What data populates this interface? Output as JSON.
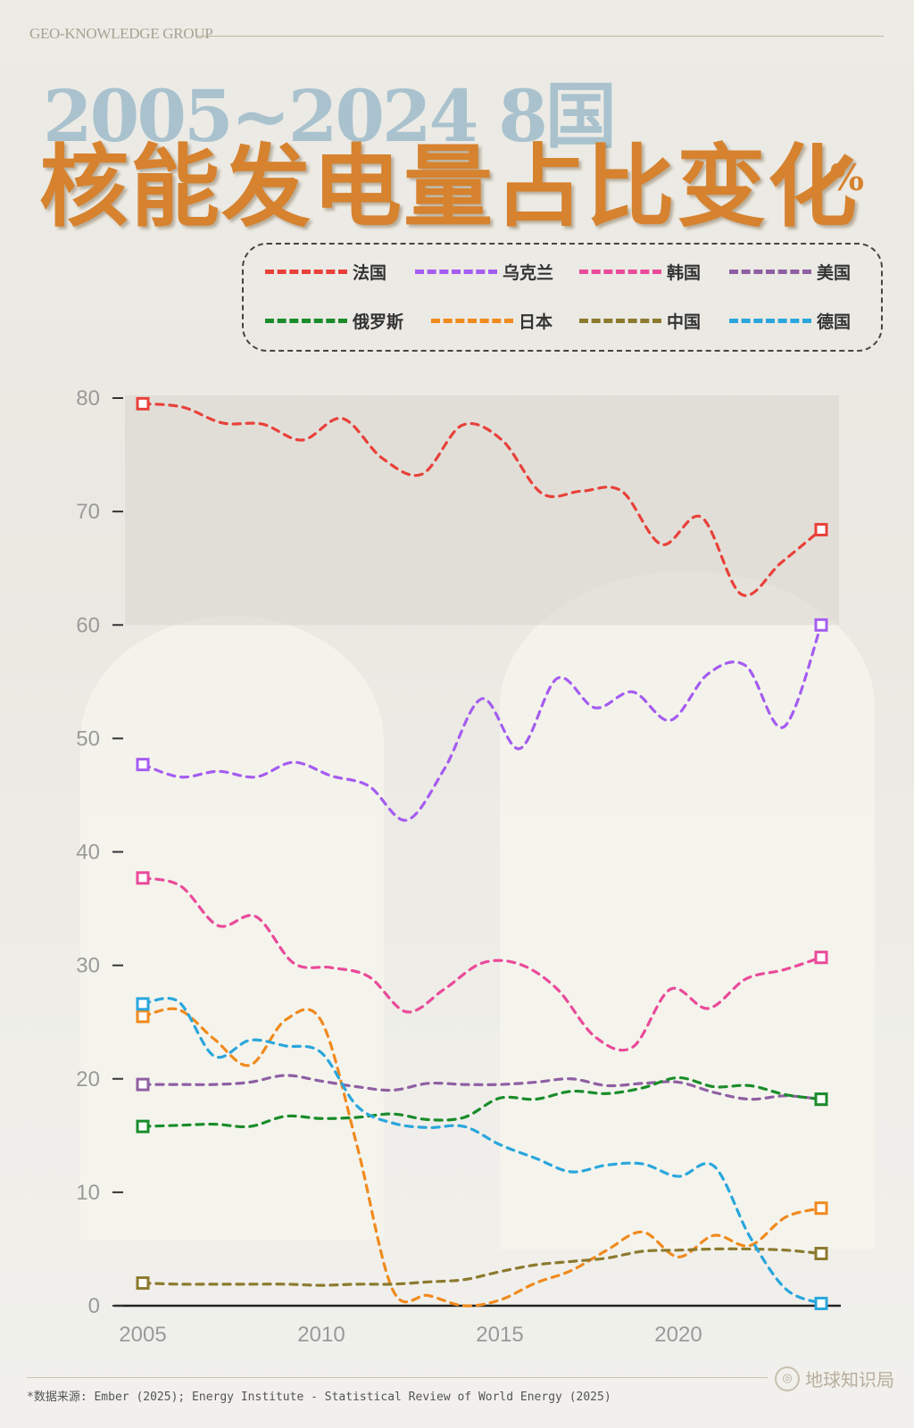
{
  "header": {
    "brand": "GEO-KNOWLEDGE GROUP",
    "subtitle": "2005~2024 8国",
    "title": "核能发电量占比变化",
    "unit": "%"
  },
  "footer": {
    "source": "*数据来源: Ember (2025); Energy Institute - Statistical Review of World Energy (2025)",
    "logo_text": "地球知识局"
  },
  "colors": {
    "france": "#e8413a",
    "ukraine": "#a55cf0",
    "korea": "#ea4a9a",
    "usa": "#8f5fa3",
    "russia": "#1a8c2a",
    "japan": "#f08a1e",
    "china": "#8c7a2e",
    "germany": "#2aa6dc"
  },
  "chart_data": {
    "type": "line",
    "title": "核能发电量占比变化",
    "xlabel": "",
    "ylabel": "",
    "xlim": [
      2005,
      2024
    ],
    "ylim": [
      0,
      80
    ],
    "x_ticks": [
      2005,
      2010,
      2015,
      2020
    ],
    "y_ticks": [
      0,
      10,
      20,
      30,
      40,
      50,
      60,
      70,
      80
    ],
    "grid": false,
    "legend_position": "top",
    "highlight_band": [
      60,
      80
    ],
    "x": [
      2005,
      2006,
      2007,
      2008,
      2009,
      2010,
      2011,
      2012,
      2013,
      2014,
      2015,
      2016,
      2017,
      2018,
      2019,
      2020,
      2021,
      2022,
      2023,
      2024
    ],
    "series": [
      {
        "name": "法国",
        "color": "#e8413a",
        "values": [
          79.5,
          79.2,
          77.8,
          77.7,
          76.3,
          78.2,
          74.7,
          73.3,
          77.6,
          76.3,
          71.6,
          71.8,
          71.8,
          67.1,
          69.5,
          62.7,
          65.5,
          68.4,
          null,
          null
        ]
      },
      {
        "name": "乌克兰",
        "color": "#a55cf0",
        "values": [
          47.7,
          46.6,
          47.1,
          46.6,
          47.9,
          46.7,
          45.8,
          42.8,
          47.3,
          53.5,
          49.1,
          55.3,
          52.7,
          54.1,
          51.6,
          55.7,
          56.4,
          51.0,
          60.0,
          null
        ]
      },
      {
        "name": "韩国",
        "color": "#ea4a9a",
        "values": [
          37.7,
          37.0,
          33.5,
          34.3,
          30.2,
          29.8,
          29.0,
          25.9,
          27.9,
          30.2,
          30.1,
          27.9,
          23.7,
          22.8,
          27.9,
          26.2,
          28.8,
          29.6,
          30.7,
          null
        ]
      },
      {
        "name": "美国",
        "color": "#8f5fa3",
        "values": [
          19.5,
          19.5,
          19.5,
          19.7,
          20.3,
          19.8,
          19.3,
          19.0,
          19.6,
          19.5,
          19.5,
          19.7,
          20.0,
          19.4,
          19.6,
          19.7,
          18.8,
          18.2,
          18.5,
          18.2
        ]
      },
      {
        "name": "俄罗斯",
        "color": "#1a8c2a",
        "values": [
          15.8,
          15.9,
          16.0,
          15.8,
          16.7,
          16.5,
          16.6,
          16.9,
          16.4,
          16.6,
          18.3,
          18.2,
          18.9,
          18.7,
          19.2,
          20.1,
          19.3,
          19.4,
          18.6,
          18.2
        ]
      },
      {
        "name": "日本",
        "color": "#f08a1e",
        "values": [
          25.5,
          26.1,
          23.5,
          21.2,
          25.2,
          25.1,
          14.1,
          1.4,
          0.9,
          0.0,
          0.5,
          2.0,
          3.1,
          4.9,
          6.5,
          4.3,
          6.2,
          5.3,
          7.8,
          8.6
        ]
      },
      {
        "name": "中国",
        "color": "#8c7a2e",
        "values": [
          2.0,
          1.9,
          1.9,
          1.9,
          1.9,
          1.8,
          1.9,
          1.9,
          2.1,
          2.3,
          3.0,
          3.6,
          3.9,
          4.2,
          4.8,
          4.9,
          5.0,
          5.0,
          4.9,
          4.6
        ]
      },
      {
        "name": "德国",
        "color": "#2aa6dc",
        "values": [
          26.6,
          26.8,
          22.0,
          23.4,
          22.9,
          22.3,
          17.6,
          16.1,
          15.7,
          15.8,
          14.2,
          13.0,
          11.8,
          12.4,
          12.5,
          11.4,
          12.3,
          6.1,
          1.5,
          0.2
        ]
      }
    ]
  }
}
